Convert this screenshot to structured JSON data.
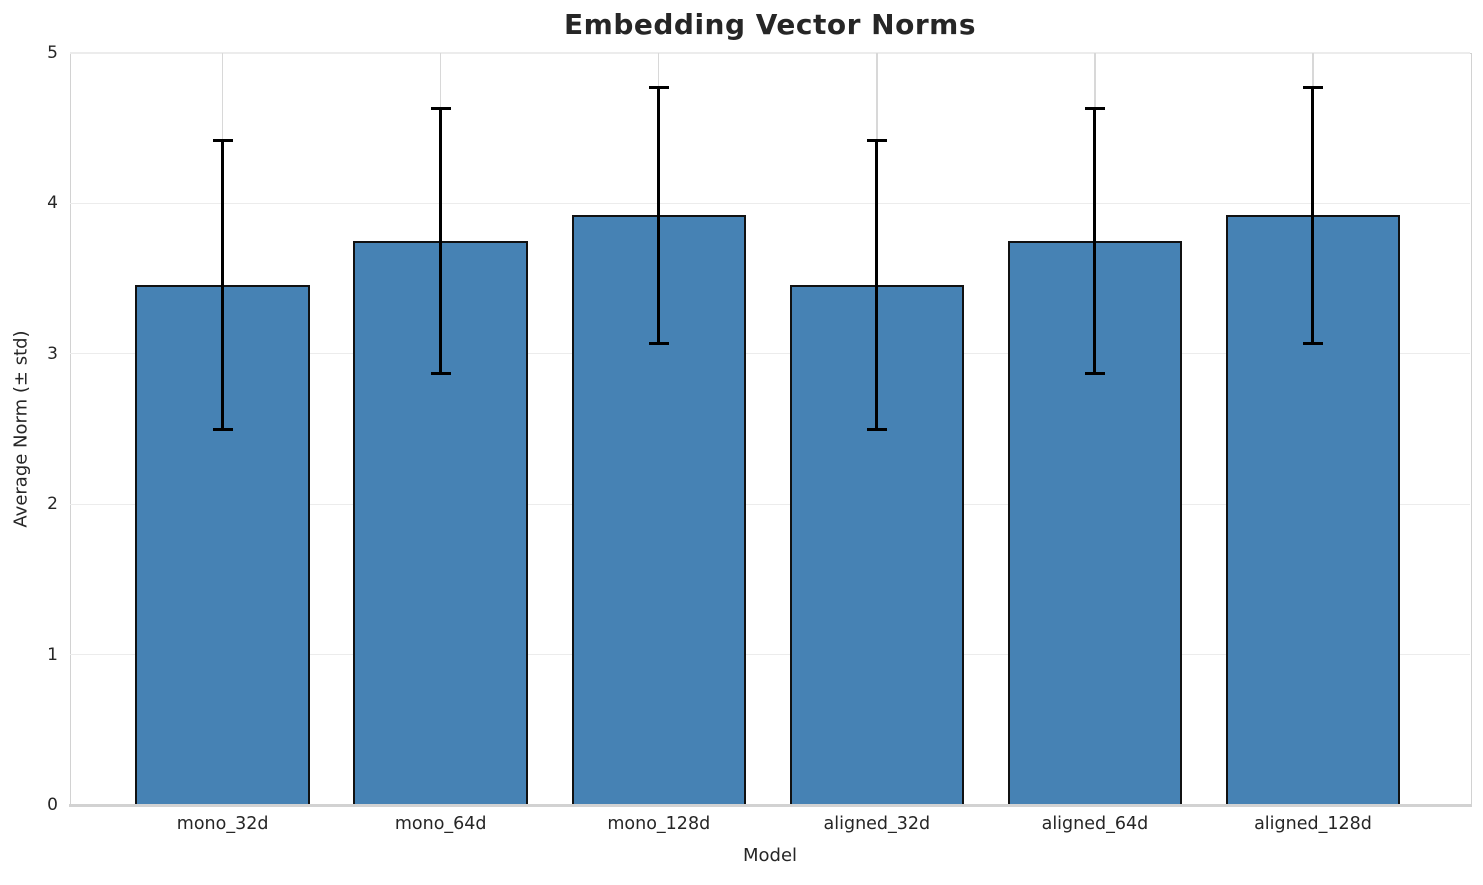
{
  "figure": {
    "background_color": "#ffffff",
    "text_color": "#262626",
    "grid_color_horizontal": "#ececec",
    "grid_color_vertical": "#d8d8d8",
    "spine_color": "#d2d2d2"
  },
  "chart_data": {
    "type": "bar",
    "title": "Embedding Vector Norms",
    "xlabel": "Model",
    "ylabel": "Average Norm (± std)",
    "categories": [
      "mono_32d",
      "mono_64d",
      "mono_128d",
      "aligned_32d",
      "aligned_64d",
      "aligned_128d"
    ],
    "series": [
      {
        "name": "Average Norm",
        "values": [
          3.46,
          3.75,
          3.92,
          3.46,
          3.75,
          3.92
        ],
        "error_std": [
          0.96,
          0.88,
          0.85,
          0.96,
          0.88,
          0.85
        ]
      }
    ],
    "ylim": [
      0,
      5
    ],
    "yticks": [
      0,
      1,
      2,
      3,
      4,
      5
    ],
    "grid": "both",
    "legend": "none",
    "bar_color": "#4682B4",
    "bar_edge_color": "#111111",
    "error_bar_color": "#000000"
  }
}
